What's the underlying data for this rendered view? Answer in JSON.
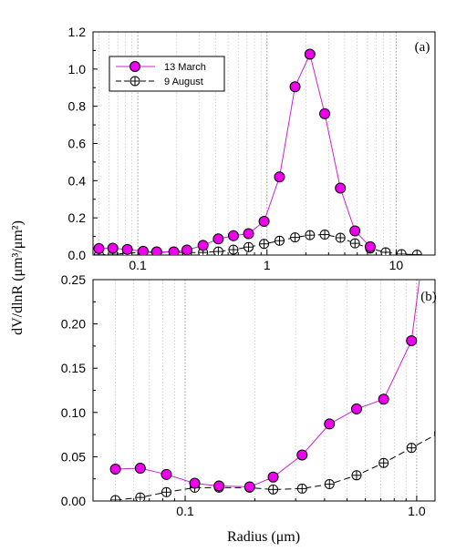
{
  "figure": {
    "ylabel": "dV/dlnR  (μm³/μm²)",
    "xlabel": "Radius (μm)"
  },
  "chart_data": [
    {
      "type": "line",
      "panel_label": "(a)",
      "xscale": "log",
      "xlim": [
        0.045,
        20
      ],
      "ylim": [
        0,
        1.2
      ],
      "x_ticks": [
        "0.1",
        "1",
        "10"
      ],
      "y_ticks": [
        "0.0",
        "0.2",
        "0.4",
        "0.6",
        "0.8",
        "1.0",
        "1.2"
      ],
      "grid": "dotted vertical log gridlines",
      "legend_position": "top-left",
      "legend_entries": [
        "13 March",
        "9 August"
      ],
      "series": [
        {
          "name": "13 March",
          "color": "#cc22cc",
          "marker": "filled circle",
          "marker_color": "#ee00ee",
          "line_style": "solid",
          "points": [
            [
              0.05,
              0.035
            ],
            [
              0.064,
              0.037
            ],
            [
              0.083,
              0.03
            ],
            [
              0.11,
              0.02
            ],
            [
              0.14,
              0.017
            ],
            [
              0.19,
              0.017
            ],
            [
              0.24,
              0.027
            ],
            [
              0.32,
              0.052
            ],
            [
              0.42,
              0.087
            ],
            [
              0.55,
              0.104
            ],
            [
              0.72,
              0.115
            ],
            [
              0.95,
              0.181
            ],
            [
              1.25,
              0.42
            ],
            [
              1.65,
              0.905
            ],
            [
              2.15,
              1.08
            ],
            [
              2.8,
              0.76
            ],
            [
              3.7,
              0.36
            ],
            [
              4.8,
              0.13
            ],
            [
              6.3,
              0.045
            ]
          ]
        },
        {
          "name": "9 August",
          "color": "#000000",
          "marker": "crossed circle",
          "marker_color": "#ffffff",
          "line_style": "dashed",
          "points": [
            [
              0.05,
              0.001
            ],
            [
              0.064,
              0.004
            ],
            [
              0.083,
              0.01
            ],
            [
              0.11,
              0.014
            ],
            [
              0.14,
              0.015
            ],
            [
              0.19,
              0.015
            ],
            [
              0.24,
              0.013
            ],
            [
              0.32,
              0.014
            ],
            [
              0.42,
              0.019
            ],
            [
              0.55,
              0.029
            ],
            [
              0.72,
              0.043
            ],
            [
              0.95,
              0.06
            ],
            [
              1.25,
              0.077
            ],
            [
              1.65,
              0.095
            ],
            [
              2.15,
              0.107
            ],
            [
              2.8,
              0.11
            ],
            [
              3.7,
              0.093
            ],
            [
              4.8,
              0.063
            ],
            [
              6.3,
              0.035
            ],
            [
              8.3,
              0.015
            ],
            [
              11,
              0.005
            ],
            [
              14.5,
              0.002
            ]
          ]
        }
      ]
    },
    {
      "type": "line",
      "panel_label": "(b)",
      "xscale": "log",
      "xlim": [
        0.04,
        1.2
      ],
      "ylim": [
        0,
        0.25
      ],
      "x_ticks": [
        "0.1",
        "1.0"
      ],
      "y_ticks": [
        "0.00",
        "0.05",
        "0.10",
        "0.15",
        "0.20",
        "0.25"
      ],
      "grid": "dotted vertical log gridlines",
      "series": [
        {
          "name": "13 March",
          "color": "#cc22cc",
          "marker": "filled circle",
          "marker_color": "#ee00ee",
          "line_style": "solid",
          "points": [
            [
              0.05,
              0.036
            ],
            [
              0.064,
              0.037
            ],
            [
              0.083,
              0.03
            ],
            [
              0.11,
              0.02
            ],
            [
              0.14,
              0.017
            ],
            [
              0.19,
              0.016
            ],
            [
              0.24,
              0.027
            ],
            [
              0.32,
              0.052
            ],
            [
              0.42,
              0.087
            ],
            [
              0.55,
              0.104
            ],
            [
              0.72,
              0.115
            ],
            [
              0.95,
              0.181
            ],
            [
              1.25,
              0.42
            ]
          ]
        },
        {
          "name": "9 August",
          "color": "#000000",
          "marker": "crossed circle",
          "marker_color": "#ffffff",
          "line_style": "dashed",
          "points": [
            [
              0.05,
              0.001
            ],
            [
              0.064,
              0.004
            ],
            [
              0.083,
              0.01
            ],
            [
              0.11,
              0.015
            ],
            [
              0.14,
              0.015
            ],
            [
              0.19,
              0.015
            ],
            [
              0.24,
              0.013
            ],
            [
              0.32,
              0.014
            ],
            [
              0.42,
              0.019
            ],
            [
              0.55,
              0.029
            ],
            [
              0.72,
              0.043
            ],
            [
              0.95,
              0.06
            ],
            [
              1.25,
              0.077
            ]
          ]
        }
      ]
    }
  ]
}
